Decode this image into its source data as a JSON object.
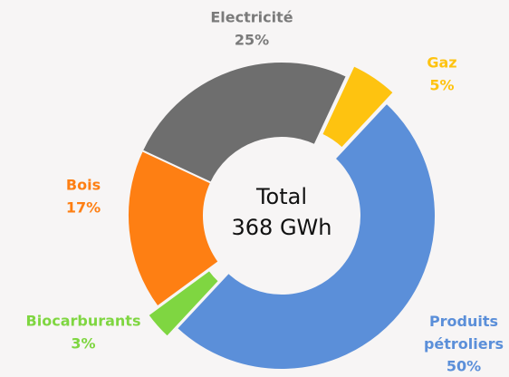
{
  "chart_data": {
    "type": "donut",
    "categories": [
      "Gaz",
      "Produits pétroliers",
      "Biocarburants",
      "Bois",
      "Electricité"
    ],
    "values": [
      5,
      50,
      3,
      17,
      25
    ],
    "value_labels": [
      "5%",
      "50%",
      "3%",
      "17%",
      "25%"
    ],
    "colors": [
      "#fec310",
      "#5b8fd9",
      "#7fd641",
      "#fe7f13",
      "#6e6e6e"
    ],
    "label_colors": [
      "#fec310",
      "#5b8fd9",
      "#7fd641",
      "#fe7f13",
      "#7a7a7a"
    ],
    "exploded": [
      true,
      false,
      true,
      false,
      false
    ],
    "startangle": 25,
    "center_text": [
      "Total",
      "368 GWh"
    ]
  }
}
